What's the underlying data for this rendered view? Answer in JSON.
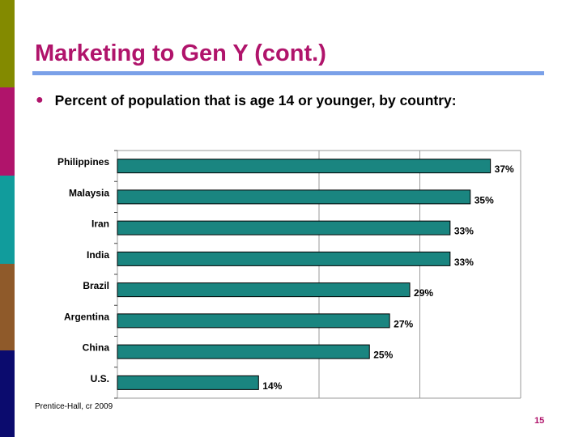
{
  "slide": {
    "title": "Marketing to Gen Y (cont.)",
    "bullet": "Percent of population that is age 14 or younger, by country:",
    "source": "Prentice-Hall, cr 2009",
    "page_number": "15"
  },
  "colors": {
    "title": "#b0146b",
    "rule": "#7aa0e8",
    "bullet": "#b0146b",
    "page_number": "#b0146b",
    "bar": "#1a8580",
    "strip": [
      "#838a00",
      "#b0146b",
      "#119c9c",
      "#8f5a2a",
      "#0b0b6e"
    ]
  },
  "chart_data": {
    "type": "bar",
    "orientation": "horizontal",
    "categories": [
      "Philippines",
      "Malaysia",
      "Iran",
      "India",
      "Brazil",
      "Argentina",
      "China",
      "U.S."
    ],
    "values": [
      37,
      35,
      33,
      33,
      29,
      27,
      25,
      14
    ],
    "data_labels": [
      "37%",
      "35%",
      "33%",
      "33%",
      "29%",
      "27%",
      "25%",
      "14%"
    ],
    "xlim": [
      0,
      40
    ],
    "gridlines_x": [
      0,
      20,
      30,
      40
    ],
    "xlabel": "",
    "ylabel": "",
    "legend": "none"
  }
}
